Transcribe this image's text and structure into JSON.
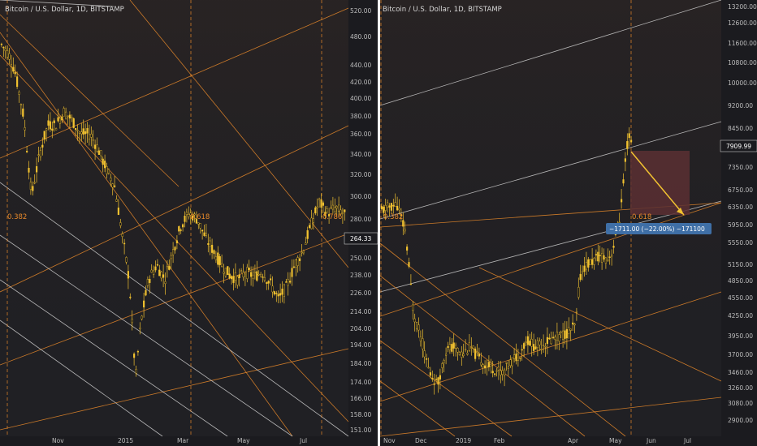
{
  "colors": {
    "background": "#1b1b1f",
    "panel": "#202024",
    "candle": "#f2c230",
    "orange_line": "#e8892a",
    "white_line": "#d0d0d0",
    "fib_label": "#e8892a",
    "divider": "#f2f2f2",
    "measure_box": "#5a2f33",
    "measure_arrow": "#f2c230",
    "measure_tag": "#3f6fa6",
    "last_price_tag": "#1b1b1f"
  },
  "chart_data": [
    {
      "type": "candlestick",
      "title": "Bitcoin / U.S. Dollar, 1D, BITSTAMP",
      "y_ticks": [
        "520.00",
        "480.00",
        "440.00",
        "420.00",
        "400.00",
        "380.00",
        "360.00",
        "340.00",
        "320.00",
        "300.00",
        "280.00",
        "264.33",
        "250.00",
        "238.00",
        "226.00",
        "214.00",
        "204.00",
        "194.00",
        "184.00",
        "174.00",
        "166.00",
        "158.00",
        "151.00"
      ],
      "x_ticks": [
        "Nov",
        "2015",
        "Mar",
        "May",
        "Jul"
      ],
      "last_price": "264.33",
      "fib_labels": [
        "0.382",
        "0.618",
        "0.786"
      ],
      "price_path": [
        [
          0,
          470
        ],
        [
          10,
          455
        ],
        [
          18,
          430
        ],
        [
          28,
          380
        ],
        [
          38,
          300
        ],
        [
          48,
          340
        ],
        [
          58,
          370
        ],
        [
          68,
          370
        ],
        [
          78,
          385
        ],
        [
          88,
          375
        ],
        [
          98,
          360
        ],
        [
          110,
          360
        ],
        [
          120,
          345
        ],
        [
          130,
          325
        ],
        [
          140,
          310
        ],
        [
          150,
          265
        ],
        [
          158,
          235
        ],
        [
          166,
          175
        ],
        [
          172,
          205
        ],
        [
          182,
          235
        ],
        [
          192,
          245
        ],
        [
          202,
          235
        ],
        [
          212,
          255
        ],
        [
          222,
          275
        ],
        [
          232,
          285
        ],
        [
          242,
          280
        ],
        [
          252,
          265
        ],
        [
          262,
          255
        ],
        [
          272,
          245
        ],
        [
          282,
          238
        ],
        [
          292,
          235
        ],
        [
          302,
          240
        ],
        [
          312,
          237
        ],
        [
          322,
          240
        ],
        [
          332,
          232
        ],
        [
          342,
          222
        ],
        [
          352,
          230
        ],
        [
          362,
          245
        ],
        [
          372,
          255
        ],
        [
          382,
          275
        ],
        [
          392,
          295
        ],
        [
          402,
          285
        ],
        [
          412,
          290
        ],
        [
          422,
          285
        ],
        [
          428,
          280
        ]
      ]
    },
    {
      "type": "candlestick",
      "title": "Bitcoin / U.S. Dollar, 1D, BITSTAMP",
      "y_ticks": [
        "13200.00",
        "12600.00",
        "11600.00",
        "10800.00",
        "10000.00",
        "9200.00",
        "8450.00",
        "7909.99",
        "7350.00",
        "6750.00",
        "6350.00",
        "5950.00",
        "5550.00",
        "5150.00",
        "4850.00",
        "4550.00",
        "4250.00",
        "3950.00",
        "3700.00",
        "3460.00",
        "3260.00",
        "3080.00",
        "2900.00"
      ],
      "x_ticks": [
        "Nov",
        "Dec",
        "2019",
        "Feb",
        "Apr",
        "May",
        "Jun",
        "Jul"
      ],
      "last_price": "7909.99",
      "fib_labels": [
        "0.382",
        "0.618"
      ],
      "measure_text": "−1711.00 (−22.00%) −171100",
      "price_path": [
        [
          0,
          6250
        ],
        [
          10,
          6350
        ],
        [
          20,
          6400
        ],
        [
          30,
          5800
        ],
        [
          40,
          4300
        ],
        [
          50,
          3900
        ],
        [
          60,
          3450
        ],
        [
          70,
          3300
        ],
        [
          80,
          3750
        ],
        [
          90,
          3800
        ],
        [
          100,
          3700
        ],
        [
          110,
          3800
        ],
        [
          120,
          3650
        ],
        [
          130,
          3550
        ],
        [
          140,
          3500
        ],
        [
          150,
          3450
        ],
        [
          160,
          3600
        ],
        [
          170,
          3700
        ],
        [
          180,
          3900
        ],
        [
          190,
          3800
        ],
        [
          200,
          3850
        ],
        [
          210,
          3900
        ],
        [
          220,
          3950
        ],
        [
          230,
          4000
        ],
        [
          240,
          4100
        ],
        [
          245,
          4900
        ],
        [
          250,
          5100
        ],
        [
          260,
          5200
        ],
        [
          270,
          5300
        ],
        [
          280,
          5250
        ],
        [
          285,
          5400
        ],
        [
          290,
          5700
        ],
        [
          295,
          6200
        ],
        [
          300,
          7200
        ],
        [
          303,
          7909.99
        ],
        [
          306,
          8200
        ],
        [
          310,
          7900
        ]
      ]
    }
  ]
}
